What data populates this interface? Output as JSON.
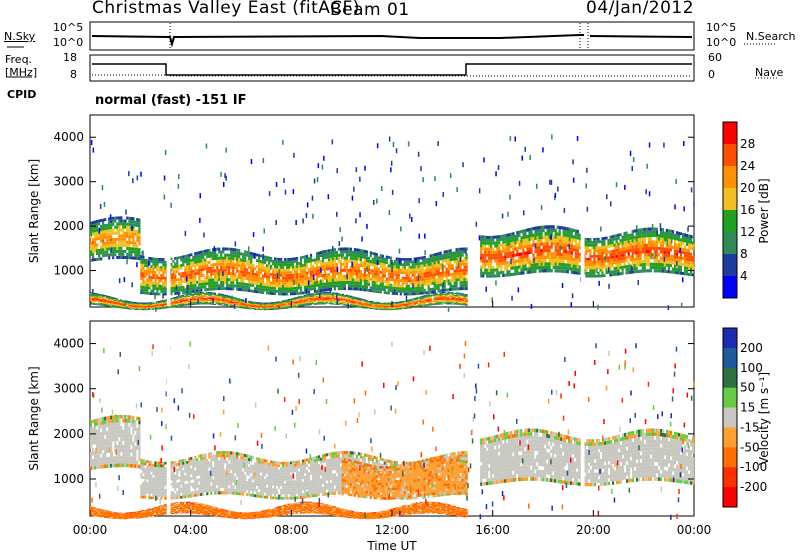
{
  "header": {
    "station": "Christmas Valley East (fitACF)",
    "beam": "Beam 01",
    "date": "04/Jan/2012"
  },
  "panels": {
    "nsky": {
      "label": "N.Sky",
      "ticks": [
        "10^5",
        "10^0"
      ],
      "right_label": "N.Search",
      "right_ticks": [
        "10^5",
        "10^0"
      ]
    },
    "freq": {
      "label_top": "Freq.",
      "label_bottom": "[MHz]",
      "ticks": [
        "18",
        "8"
      ],
      "right_label": "Nave",
      "right_ticks": [
        "60",
        "0"
      ]
    },
    "cpid": {
      "label": "CPID",
      "text": "normal (fast) -151 IF"
    }
  },
  "colors": {
    "power": [
      "#0000ff",
      "#1e3aa0",
      "#2e8b57",
      "#22a022",
      "#f0c020",
      "#ff9000",
      "#ff5000",
      "#ff0000"
    ],
    "velocity": [
      "#1e2ab0",
      "#1e5aa0",
      "#2e7040",
      "#66cc44",
      "#c8c8c0",
      "#ffa030",
      "#ff7000",
      "#ff3000",
      "#ff0000"
    ]
  },
  "chart_data": [
    {
      "type": "heatmap",
      "title": "Power",
      "ylabel": "Slant Range [km]",
      "ylim": [
        180,
        4500
      ],
      "yticks": [
        "4000",
        "3000",
        "2000",
        "1000"
      ],
      "colorbar_label": "Power [dB]",
      "colorbar_ticks": [
        "28",
        "24",
        "20",
        "16",
        "12",
        "8",
        "4"
      ],
      "echo_bands": [
        {
          "start": 0.0,
          "end": 2.0,
          "range_low": 1200,
          "range_high": 2100,
          "peak_db": 24
        },
        {
          "start": 2.0,
          "end": 15.0,
          "range_low": 500,
          "range_high": 1400,
          "peak_db": 26
        },
        {
          "start": 0.0,
          "end": 15.0,
          "range_low": 180,
          "range_high": 400,
          "peak_db": 28
        },
        {
          "start": 15.5,
          "end": 19.5,
          "range_low": 900,
          "range_high": 1900,
          "peak_db": 28
        },
        {
          "start": 19.6,
          "end": 24.0,
          "range_low": 900,
          "range_high": 1850,
          "peak_db": 28
        }
      ]
    },
    {
      "type": "heatmap",
      "title": "Velocity",
      "ylabel": "Slant Range [km]",
      "xlabel": "Time UT",
      "xticks": [
        "00:00",
        "04:00",
        "08:00",
        "12:00",
        "16:00",
        "20:00",
        "00:00"
      ],
      "ylim": [
        180,
        4500
      ],
      "yticks": [
        "4000",
        "3000",
        "2000",
        "1000"
      ],
      "colorbar_label": "Velocity [m s⁻¹]",
      "colorbar_ticks": [
        "200",
        "100",
        "50",
        "15",
        "-15",
        "-50",
        "-100",
        "-200"
      ],
      "echo_bands": [
        {
          "start": 0.0,
          "end": 2.0,
          "range_low": 1200,
          "range_high": 2300,
          "velocity": 0
        },
        {
          "start": 2.0,
          "end": 15.0,
          "range_low": 600,
          "range_high": 1500,
          "velocity": 0
        },
        {
          "start": 10.0,
          "end": 15.0,
          "range_low": 600,
          "range_high": 1400,
          "velocity": -40
        },
        {
          "start": 0.0,
          "end": 15.0,
          "range_low": 180,
          "range_high": 380,
          "velocity": -60
        },
        {
          "start": 15.5,
          "end": 24.0,
          "range_low": 900,
          "range_high": 2000,
          "velocity": 0
        }
      ]
    }
  ]
}
